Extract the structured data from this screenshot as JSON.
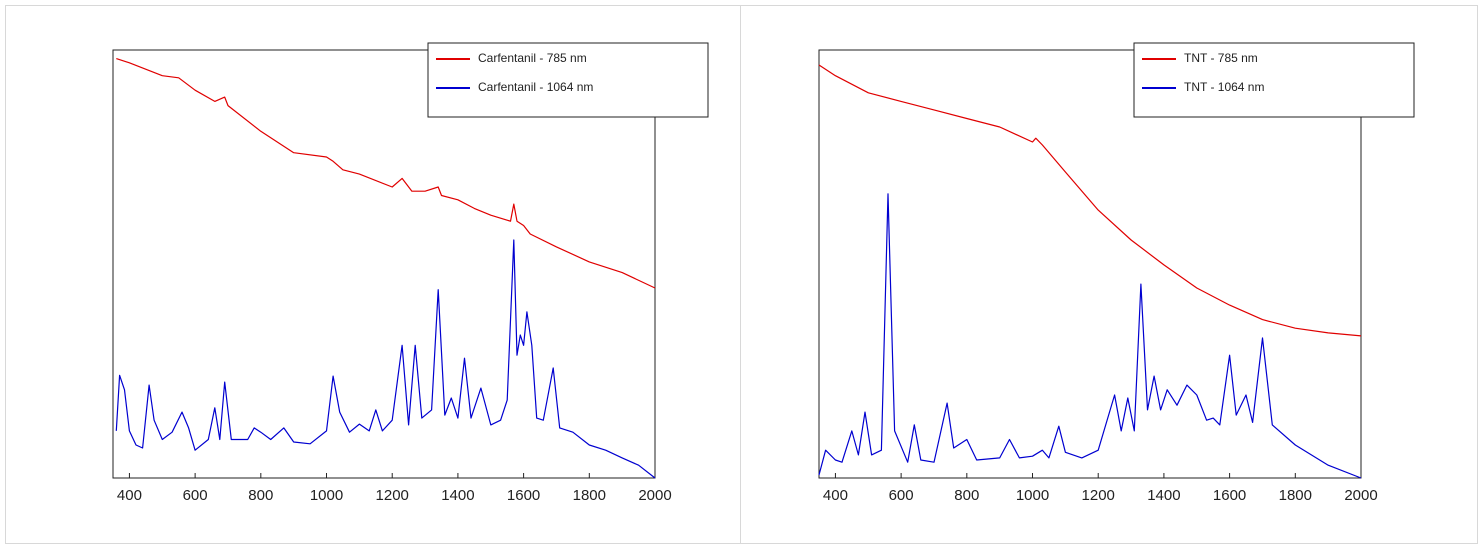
{
  "chart_data": [
    {
      "type": "line",
      "xlim": [
        350,
        2000
      ],
      "xticks": [
        400,
        600,
        800,
        1000,
        1200,
        1400,
        1600,
        1800,
        2000
      ],
      "ylim": [
        0,
        100
      ],
      "legend": "upper right",
      "series": [
        {
          "name": "Carfentanil - 785 nm",
          "color": "#e00000",
          "x": [
            360,
            400,
            500,
            550,
            600,
            660,
            690,
            700,
            800,
            900,
            1000,
            1020,
            1050,
            1100,
            1200,
            1230,
            1260,
            1300,
            1340,
            1350,
            1400,
            1450,
            1500,
            1560,
            1570,
            1580,
            1600,
            1620,
            1700,
            1800,
            1900,
            2000
          ],
          "values": [
            98,
            97,
            94,
            93.5,
            90.6,
            88,
            89,
            87,
            81,
            76,
            75,
            74,
            72,
            71,
            68,
            70,
            67,
            67,
            68,
            66,
            65,
            63,
            61.4,
            60,
            64,
            60,
            59,
            57,
            54,
            50.5,
            48,
            44.4
          ]
        },
        {
          "name": "Carfentanil - 1064 nm",
          "color": "#0000d0",
          "x": [
            360,
            370,
            385,
            400,
            420,
            440,
            460,
            475,
            500,
            530,
            560,
            580,
            600,
            640,
            660,
            675,
            690,
            710,
            760,
            780,
            800,
            830,
            870,
            900,
            950,
            1000,
            1020,
            1040,
            1070,
            1100,
            1130,
            1150,
            1170,
            1200,
            1230,
            1250,
            1270,
            1290,
            1320,
            1340,
            1360,
            1380,
            1400,
            1420,
            1440,
            1470,
            1500,
            1530,
            1550,
            1570,
            1580,
            1590,
            1600,
            1610,
            1625,
            1640,
            1660,
            1690,
            1710,
            1750,
            1800,
            1850,
            1900,
            1950,
            2000
          ],
          "values": [
            11,
            24,
            20.6,
            11,
            7.7,
            7,
            21.7,
            13.5,
            9,
            10.7,
            15.4,
            11.7,
            6.5,
            9,
            16.4,
            9,
            22.4,
            9,
            9,
            11.7,
            10.7,
            9,
            11.7,
            8.4,
            8,
            11,
            23.8,
            15.4,
            10.7,
            12.6,
            11,
            15.9,
            11,
            13.5,
            31,
            12.4,
            31,
            14,
            15.9,
            44,
            14.7,
            18.7,
            14,
            28,
            14,
            21,
            12.4,
            13.5,
            18.2,
            55.6,
            28.7,
            33.4,
            31,
            38.8,
            31,
            14,
            13.5,
            25.7,
            11.7,
            10.7,
            7.7,
            6.5,
            4.7,
            3,
            0
          ]
        }
      ]
    },
    {
      "type": "line",
      "xlim": [
        350,
        2000
      ],
      "xticks": [
        400,
        600,
        800,
        1000,
        1200,
        1400,
        1600,
        1800,
        2000
      ],
      "ylim": [
        0,
        100
      ],
      "legend": "upper right",
      "series": [
        {
          "name": "TNT - 785 nm",
          "color": "#e00000",
          "x": [
            350,
            400,
            500,
            600,
            700,
            800,
            900,
            1000,
            1010,
            1030,
            1100,
            1200,
            1300,
            1400,
            1500,
            1600,
            1700,
            1800,
            1900,
            2000
          ],
          "values": [
            96.5,
            94,
            90,
            88,
            86,
            84,
            82,
            78.5,
            79.4,
            77.8,
            71.5,
            62.6,
            55.6,
            49.8,
            44.4,
            40.4,
            37,
            35,
            33.9,
            33.2
          ]
        },
        {
          "name": "TNT - 1064 nm",
          "color": "#0000d0",
          "x": [
            350,
            370,
            400,
            420,
            450,
            470,
            490,
            510,
            540,
            560,
            580,
            620,
            640,
            660,
            700,
            740,
            760,
            800,
            830,
            900,
            930,
            960,
            1000,
            1030,
            1050,
            1080,
            1100,
            1150,
            1200,
            1250,
            1270,
            1290,
            1310,
            1330,
            1350,
            1370,
            1390,
            1410,
            1440,
            1470,
            1500,
            1530,
            1550,
            1570,
            1600,
            1620,
            1650,
            1670,
            1700,
            1730,
            1800,
            1900,
            2000
          ],
          "values": [
            0.7,
            6.5,
            4.2,
            3.7,
            11,
            5.4,
            15.4,
            5.4,
            6.5,
            66.4,
            11,
            3.7,
            12.4,
            4.2,
            3.7,
            17.5,
            7,
            9,
            4.2,
            4.7,
            9,
            4.7,
            5.1,
            6.5,
            4.7,
            12.1,
            6,
            4.7,
            6.5,
            19.4,
            11,
            18.7,
            11,
            45.3,
            15.9,
            23.8,
            15.9,
            20.6,
            17,
            21.7,
            19.4,
            13.5,
            14,
            12.4,
            28.7,
            14.7,
            19.4,
            13,
            32.7,
            12.4,
            7.7,
            3,
            0
          ]
        }
      ]
    }
  ]
}
